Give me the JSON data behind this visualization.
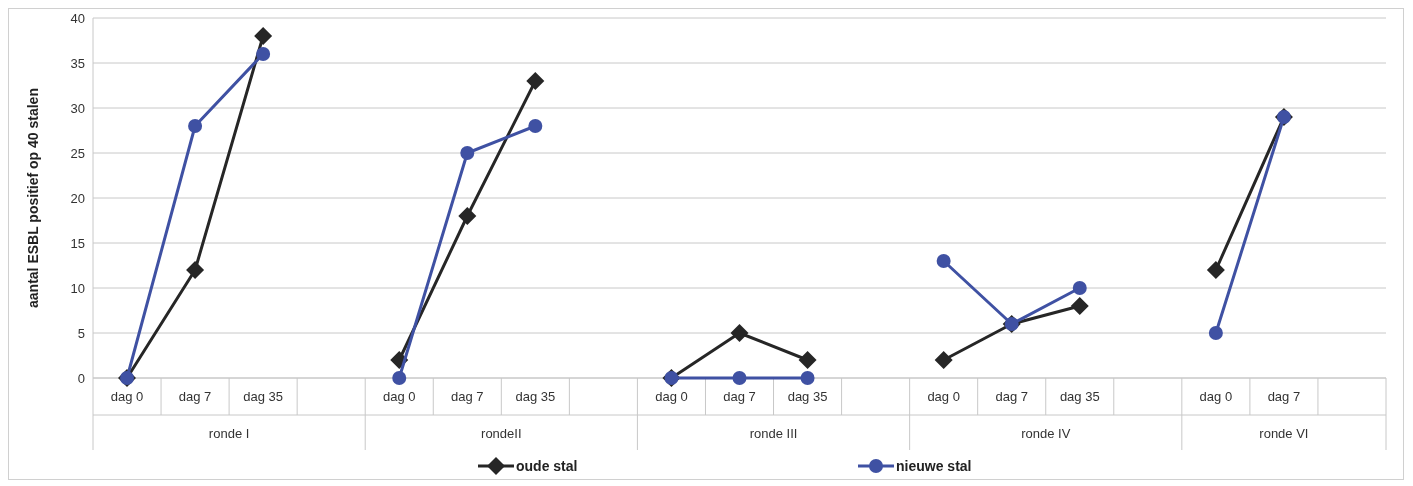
{
  "chart_data": {
    "type": "line",
    "ylabel": "aantal ESBL positief  op 40 stalen",
    "categories": [
      "dag 0",
      "dag 7",
      "dag 35",
      null,
      "dag 0",
      "dag 7",
      "dag 35",
      null,
      "dag 0",
      "dag 7",
      "dag 35",
      null,
      "dag 0",
      "dag 7",
      "dag 35",
      null,
      "dag 0",
      "dag 7",
      null
    ],
    "annotations": [
      "ronde I",
      "rondeII",
      "ronde III",
      "ronde IV",
      "ronde VI"
    ],
    "series": [
      {
        "name": "oude stal",
        "color": "#262626",
        "marker": "diamond",
        "values": [
          0,
          12,
          38,
          null,
          2,
          18,
          33,
          null,
          0,
          5,
          2,
          null,
          2,
          6,
          8,
          null,
          12,
          29,
          null
        ]
      },
      {
        "name": "nieuwe stal",
        "color": "#3f51a3",
        "marker": "circle",
        "values": [
          0,
          28,
          36,
          null,
          0,
          25,
          28,
          null,
          0,
          0,
          0,
          null,
          13,
          6,
          10,
          null,
          5,
          29,
          null
        ]
      }
    ],
    "ylim": [
      0,
      40
    ],
    "yticks": [
      0,
      5,
      10,
      15,
      20,
      25,
      30,
      35,
      40
    ],
    "grid": "y",
    "legend": "bottom",
    "line_style": "solid"
  }
}
